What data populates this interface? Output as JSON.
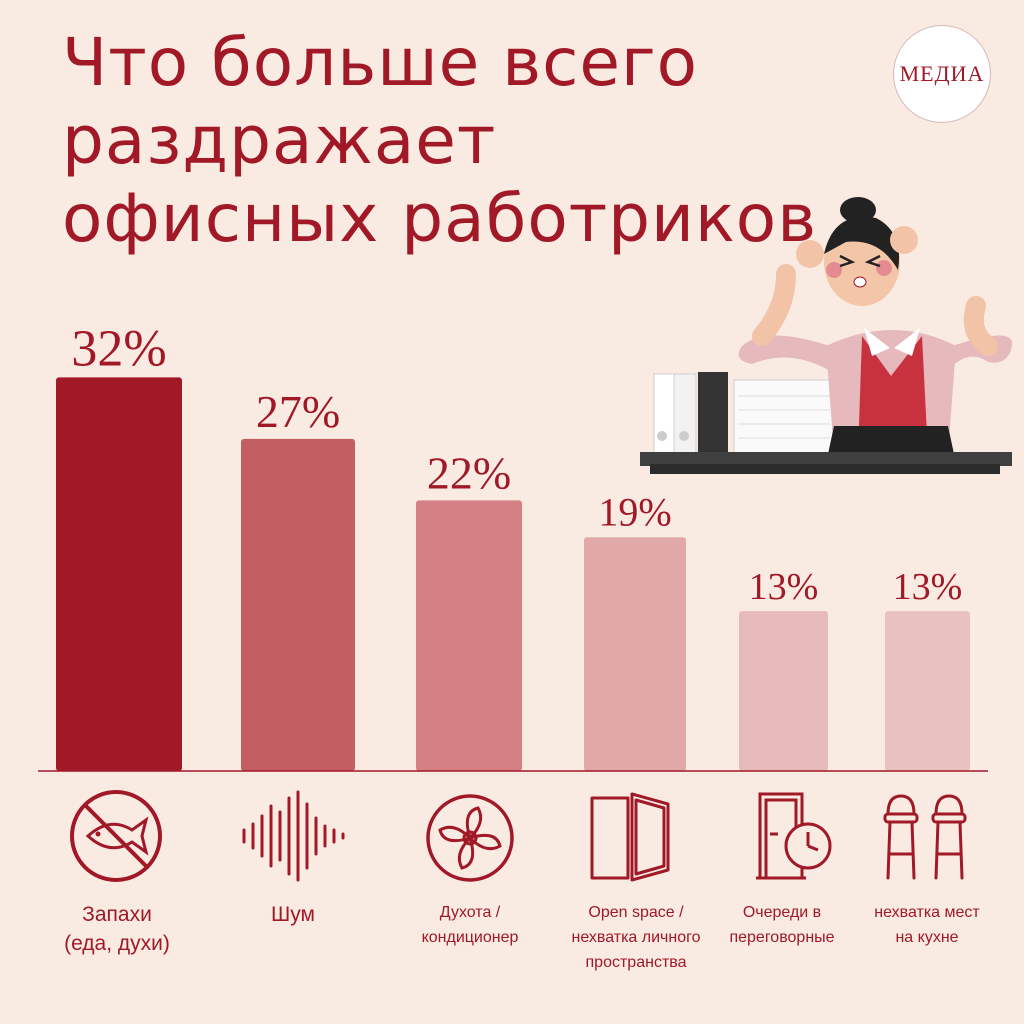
{
  "title_lines": [
    "Что больше всего",
    "раздражает",
    "офисных работриков"
  ],
  "logo_text": "МЕДИА",
  "colors": {
    "background": "#f9ebe2",
    "accent": "#a11827",
    "bars": [
      "#a11827",
      "#c35e63",
      "#d48085",
      "#e0a9a8",
      "#e6bbb9",
      "#e9c1bf"
    ]
  },
  "chart_data": {
    "type": "bar",
    "categories": [
      "Запахи (еда, духи)",
      "Шум",
      "Духота / кондиционер",
      "Open space / нехватка личного пространства",
      "Очереди в переговорные",
      "нехватка мест на кухне"
    ],
    "values": [
      32,
      27,
      22,
      19,
      13,
      13
    ],
    "value_labels": [
      "32%",
      "27%",
      "22%",
      "19%",
      "13%",
      "13%"
    ],
    "unit": "%",
    "title": "Что больше всего раздражает офисных работриков",
    "xlabel": "",
    "ylabel": "",
    "ylim": [
      0,
      40
    ],
    "grid": false
  },
  "labels": [
    [
      "Запахи",
      "(еда, духи)"
    ],
    [
      "Шум"
    ],
    [
      "Духота /",
      "кондиционер"
    ],
    [
      "Open space /",
      "нехватка личного",
      "пространства"
    ],
    [
      "Очереди в",
      "переговорные"
    ],
    [
      "нехватка мест",
      "на кухне"
    ]
  ],
  "icons": [
    "no-fish-icon",
    "sound-wave-icon",
    "fan-icon",
    "open-door-icon",
    "door-clock-icon",
    "bar-stools-icon"
  ]
}
